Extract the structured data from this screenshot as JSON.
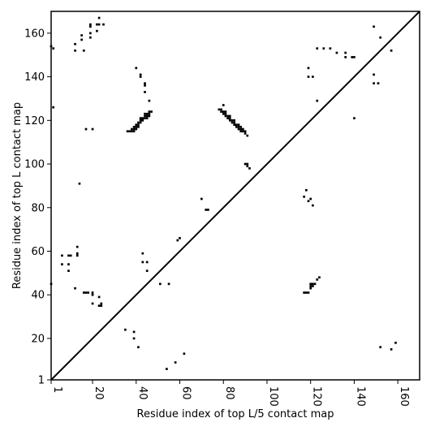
{
  "chart_data": {
    "type": "heatmap",
    "title": "",
    "xlabel": "Residue index of top L/5 contact map",
    "ylabel": "Residue index of top L contact map",
    "xlim": [
      1,
      170
    ],
    "ylim": [
      1,
      170
    ],
    "x_ticks": [
      1,
      20,
      40,
      60,
      80,
      100,
      120,
      140,
      160
    ],
    "y_ticks": [
      1,
      20,
      40,
      60,
      80,
      100,
      120,
      140,
      160
    ],
    "x_tick_labels": [
      "1",
      "20",
      "40",
      "60",
      "80",
      "100",
      "120",
      "140",
      "160"
    ],
    "y_tick_labels": [
      "1",
      "20",
      "40",
      "60",
      "80",
      "100",
      "120",
      "140",
      "160"
    ],
    "diagonal": true,
    "grid": false,
    "cell_color": "#000000",
    "upper_triangle_contacts": [
      [
        1,
        45
      ],
      [
        1,
        154
      ],
      [
        2,
        153
      ],
      [
        2,
        126
      ],
      [
        6,
        54
      ],
      [
        6,
        58
      ],
      [
        9,
        51
      ],
      [
        9,
        54
      ],
      [
        9,
        58
      ],
      [
        10,
        58
      ],
      [
        12,
        43
      ],
      [
        12,
        152
      ],
      [
        12,
        155
      ],
      [
        13,
        58
      ],
      [
        13,
        59
      ],
      [
        13,
        62
      ],
      [
        14,
        91
      ],
      [
        15,
        157
      ],
      [
        15,
        159
      ],
      [
        16,
        152
      ],
      [
        16,
        41
      ],
      [
        17,
        41
      ],
      [
        18,
        41
      ],
      [
        17,
        116
      ],
      [
        19,
        158
      ],
      [
        19,
        160
      ],
      [
        19,
        163
      ],
      [
        19,
        164
      ],
      [
        20,
        36
      ],
      [
        20,
        40
      ],
      [
        20,
        41
      ],
      [
        20,
        116
      ],
      [
        22,
        161
      ],
      [
        22,
        164
      ],
      [
        23,
        35
      ],
      [
        23,
        39
      ],
      [
        23,
        164
      ],
      [
        23,
        167
      ],
      [
        24,
        35
      ],
      [
        24,
        36
      ],
      [
        25,
        164
      ],
      [
        40,
        144
      ],
      [
        42,
        140
      ],
      [
        42,
        141
      ],
      [
        43,
        59
      ],
      [
        43,
        55
      ],
      [
        44,
        136
      ],
      [
        44,
        137
      ],
      [
        44,
        133
      ],
      [
        45,
        55
      ],
      [
        45,
        51
      ],
      [
        46,
        129
      ],
      [
        36,
        115
      ],
      [
        37,
        115
      ],
      [
        38,
        115
      ],
      [
        38,
        116
      ],
      [
        39,
        115
      ],
      [
        39,
        116
      ],
      [
        39,
        117
      ],
      [
        40,
        116
      ],
      [
        40,
        117
      ],
      [
        40,
        118
      ],
      [
        41,
        117
      ],
      [
        41,
        118
      ],
      [
        41,
        119
      ],
      [
        42,
        119
      ],
      [
        42,
        120
      ],
      [
        42,
        121
      ],
      [
        43,
        120
      ],
      [
        43,
        121
      ],
      [
        44,
        121
      ],
      [
        44,
        122
      ],
      [
        44,
        123
      ],
      [
        45,
        121
      ],
      [
        45,
        122
      ],
      [
        45,
        123
      ],
      [
        46,
        122
      ],
      [
        46,
        123
      ],
      [
        46,
        124
      ],
      [
        47,
        124
      ],
      [
        51,
        45
      ],
      [
        55,
        45
      ]
    ],
    "lower_triangle_contacts": [
      [
        35,
        24
      ],
      [
        39,
        23
      ],
      [
        39,
        20
      ],
      [
        41,
        16
      ],
      [
        54,
        6
      ],
      [
        58,
        9
      ],
      [
        62,
        13
      ],
      [
        59,
        65
      ],
      [
        60,
        66
      ],
      [
        70,
        84
      ],
      [
        72,
        79
      ],
      [
        73,
        79
      ],
      [
        78,
        125
      ],
      [
        79,
        125
      ],
      [
        80,
        127
      ],
      [
        79,
        124
      ],
      [
        80,
        124
      ],
      [
        80,
        123
      ],
      [
        81,
        123
      ],
      [
        81,
        124
      ],
      [
        81,
        122
      ],
      [
        82,
        122
      ],
      [
        82,
        121
      ],
      [
        83,
        122
      ],
      [
        83,
        121
      ],
      [
        83,
        120
      ],
      [
        84,
        120
      ],
      [
        84,
        119
      ],
      [
        85,
        120
      ],
      [
        85,
        119
      ],
      [
        85,
        118
      ],
      [
        86,
        118
      ],
      [
        86,
        117
      ],
      [
        87,
        118
      ],
      [
        87,
        117
      ],
      [
        87,
        116
      ],
      [
        88,
        117
      ],
      [
        88,
        116
      ],
      [
        88,
        115
      ],
      [
        89,
        116
      ],
      [
        89,
        115
      ],
      [
        90,
        115
      ],
      [
        90,
        114
      ],
      [
        91,
        113
      ],
      [
        90,
        100
      ],
      [
        91,
        100
      ],
      [
        91,
        99
      ],
      [
        92,
        98
      ],
      [
        117,
        85
      ],
      [
        118,
        88
      ],
      [
        119,
        83
      ],
      [
        120,
        84
      ],
      [
        121,
        81
      ],
      [
        117,
        41
      ],
      [
        118,
        41
      ],
      [
        119,
        41
      ],
      [
        120,
        43
      ],
      [
        120,
        44
      ],
      [
        120,
        45
      ],
      [
        121,
        44
      ],
      [
        121,
        45
      ],
      [
        122,
        45
      ],
      [
        123,
        47
      ],
      [
        124,
        48
      ],
      [
        119,
        144
      ],
      [
        119,
        140
      ],
      [
        121,
        140
      ],
      [
        123,
        129
      ],
      [
        123,
        153
      ],
      [
        126,
        153
      ],
      [
        129,
        153
      ],
      [
        132,
        151
      ],
      [
        136,
        149
      ],
      [
        136,
        151
      ],
      [
        139,
        149
      ],
      [
        140,
        121
      ],
      [
        140,
        149
      ],
      [
        149,
        163
      ],
      [
        149,
        141
      ],
      [
        149,
        137
      ],
      [
        151,
        137
      ],
      [
        152,
        158
      ],
      [
        152,
        16
      ],
      [
        157,
        152
      ],
      [
        157,
        15
      ],
      [
        159,
        18
      ]
    ]
  }
}
